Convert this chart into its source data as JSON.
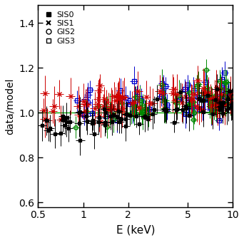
{
  "title": "",
  "xlabel": "E (keV)",
  "ylabel": "data/model",
  "xlim": [
    0.5,
    10
  ],
  "ylim": [
    0.58,
    1.48
  ],
  "yticks": [
    0.6,
    0.8,
    1.0,
    1.2,
    1.4
  ],
  "xticks": [
    0.5,
    1,
    2,
    5,
    10
  ],
  "xticklabels": [
    "0.5",
    "1",
    "2",
    "5",
    "10"
  ],
  "colors": {
    "SIS0": "#000000",
    "SIS1": "#cc0000",
    "GIS2": "#008800",
    "GIS3": "#0000cc"
  },
  "reference_line": 1.0,
  "reference_color": "#00aa00",
  "background": "#ffffff"
}
